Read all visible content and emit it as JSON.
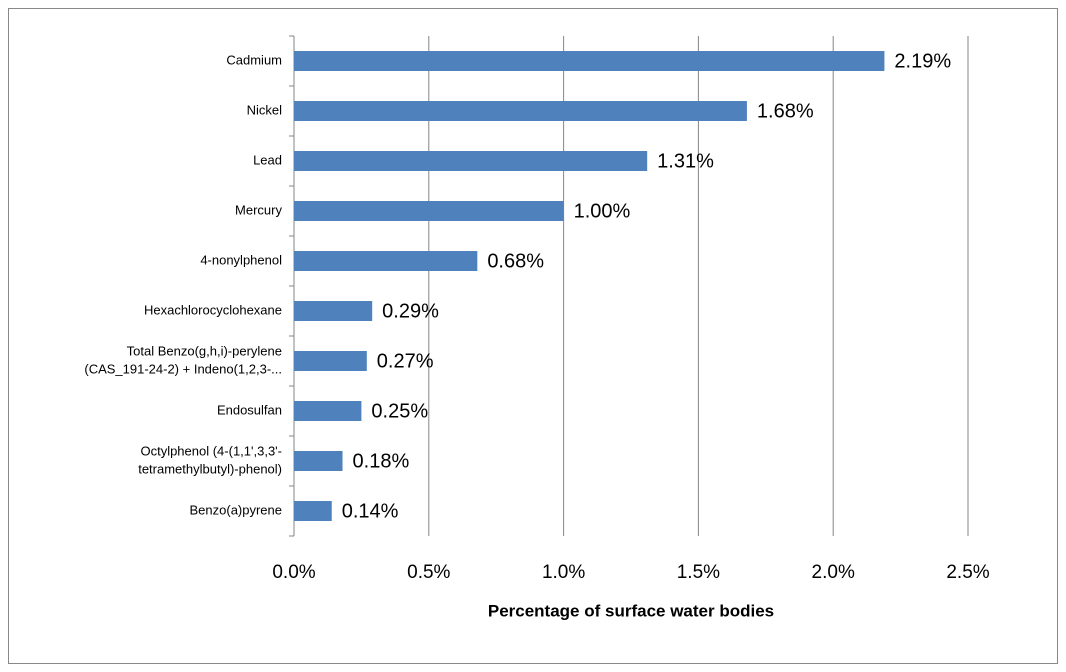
{
  "chart_data": {
    "type": "bar",
    "orientation": "horizontal",
    "categories": [
      [
        "Cadmium"
      ],
      [
        "Nickel"
      ],
      [
        "Lead"
      ],
      [
        "Mercury"
      ],
      [
        "4-nonylphenol"
      ],
      [
        "Hexachlorocyclohexane"
      ],
      [
        "Total Benzo(g,h,i)-perylene",
        "(CAS_191-24-2) + Indeno(1,2,3-..."
      ],
      [
        "Endosulfan"
      ],
      [
        "Octylphenol (4-(1,1',3,3'-",
        "tetramethylbutyl)-phenol)"
      ],
      [
        "Benzo(a)pyrene"
      ]
    ],
    "values": [
      2.19,
      1.68,
      1.31,
      1.0,
      0.68,
      0.29,
      0.27,
      0.25,
      0.18,
      0.14
    ],
    "value_labels": [
      "2.19%",
      "1.68%",
      "1.31%",
      "1.00%",
      "0.68%",
      "0.29%",
      "0.27%",
      "0.25%",
      "0.18%",
      "0.14%"
    ],
    "color": "#4f81bd",
    "xlim": [
      0,
      2.5
    ],
    "xticks": [
      {
        "value": 0,
        "label": "0.0%"
      },
      {
        "value": 0.5,
        "label": "0.5%"
      },
      {
        "value": 1.0,
        "label": "1.0%"
      },
      {
        "value": 1.5,
        "label": "1.5%"
      },
      {
        "value": 2.0,
        "label": "2.0%"
      },
      {
        "value": 2.5,
        "label": "2.5%"
      }
    ],
    "xlabel": "Percentage of surface water bodies",
    "grid": true
  }
}
